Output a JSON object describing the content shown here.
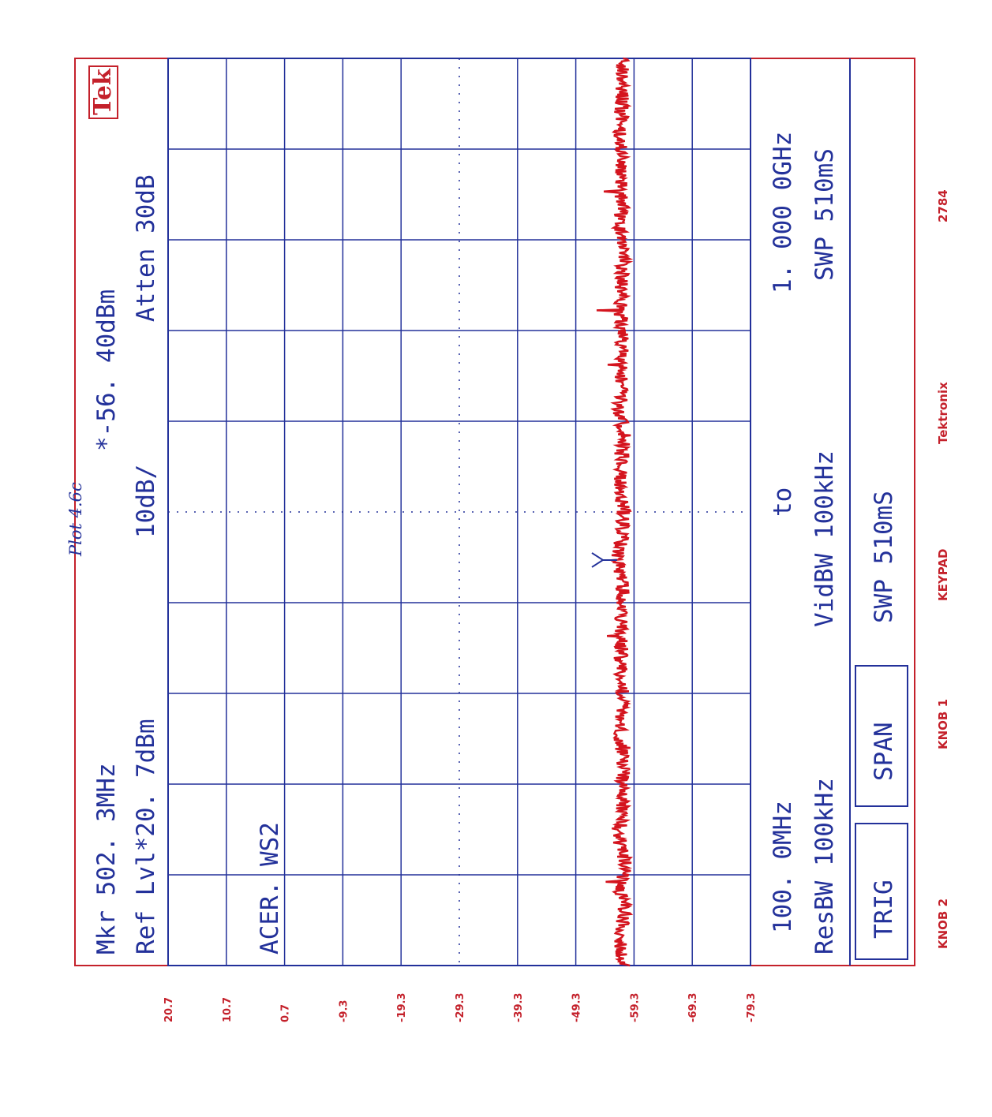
{
  "annotation": "Plot 4.6c",
  "screen": {
    "line1": "Mkr 502. 3MHz",
    "line1_right": "*-56. 40dBm",
    "line2": "Ref Lvl*20. 7dBm",
    "line2_mid": "10dB/",
    "line2_right": "Atten 30dB",
    "label": "ACER. WS2",
    "freq_start": "100. 0MHz",
    "freq_to": "to",
    "freq_stop": "1. 000 0GHz",
    "resbw": "ResBW 100kHz",
    "vidbw": "VidBW 100kHz",
    "swp1": "SWP 510mS",
    "swp2": "SWP 510mS"
  },
  "softkeys": {
    "trig": "TRIG",
    "span": "SPAN"
  },
  "footer": [
    "KNOB 2",
    "KNOB 1",
    "KEYPAD",
    "Tektronix",
    "2784"
  ],
  "logo": "Tek",
  "colors": {
    "grid": "#23319a",
    "trace": "#d4141e",
    "border": "#c4212b",
    "labels": "#c4212b"
  },
  "chart_data": {
    "type": "line",
    "x_start_label": "100. 0MHz",
    "x_stop_label": "1. 000 0GHz",
    "xlim_mhz": [
      100.0,
      1000.0
    ],
    "ylim_dbm": [
      -79.3,
      20.7
    ],
    "y_scale": "10dB/",
    "y_ticks": [
      "20.7",
      "10.7",
      "0.7",
      "-9.3",
      "-19.3",
      "-29.3",
      "-39.3",
      "-49.3",
      "-59.3",
      "-69.3",
      "-79.3"
    ],
    "y_tick_values": [
      20.7,
      10.7,
      0.7,
      -9.3,
      -19.3,
      -29.3,
      -39.3,
      -49.3,
      -59.3,
      -69.3,
      -79.3
    ],
    "grid": true,
    "marker": {
      "freq_mhz": 502.3,
      "level_dbm": -56.4
    },
    "series": [
      {
        "x_mhz": [
          100,
          125,
          150,
          175,
          200,
          225,
          250,
          275,
          300,
          325,
          350,
          375,
          400,
          425,
          450,
          475,
          500,
          525,
          550,
          575,
          600,
          625,
          650,
          675,
          700,
          725,
          750,
          775,
          800,
          825,
          850,
          875,
          900,
          925,
          950,
          975,
          1000
        ],
        "level_dbm": [
          -57.4,
          -56.9,
          -57.6,
          -57.0,
          -57.8,
          -56.8,
          -57.3,
          -57.1,
          -57.6,
          -56.7,
          -57.2,
          -57.5,
          -56.9,
          -57.3,
          -57.0,
          -57.4,
          -56.4,
          -57.1,
          -57.5,
          -56.9,
          -57.2,
          -57.6,
          -56.8,
          -57.3,
          -57.0,
          -57.4,
          -56.9,
          -57.2,
          -57.5,
          -56.8,
          -57.3,
          -57.0,
          -57.4,
          -56.9,
          -57.2,
          -57.3,
          -57.1
        ]
      }
    ]
  }
}
